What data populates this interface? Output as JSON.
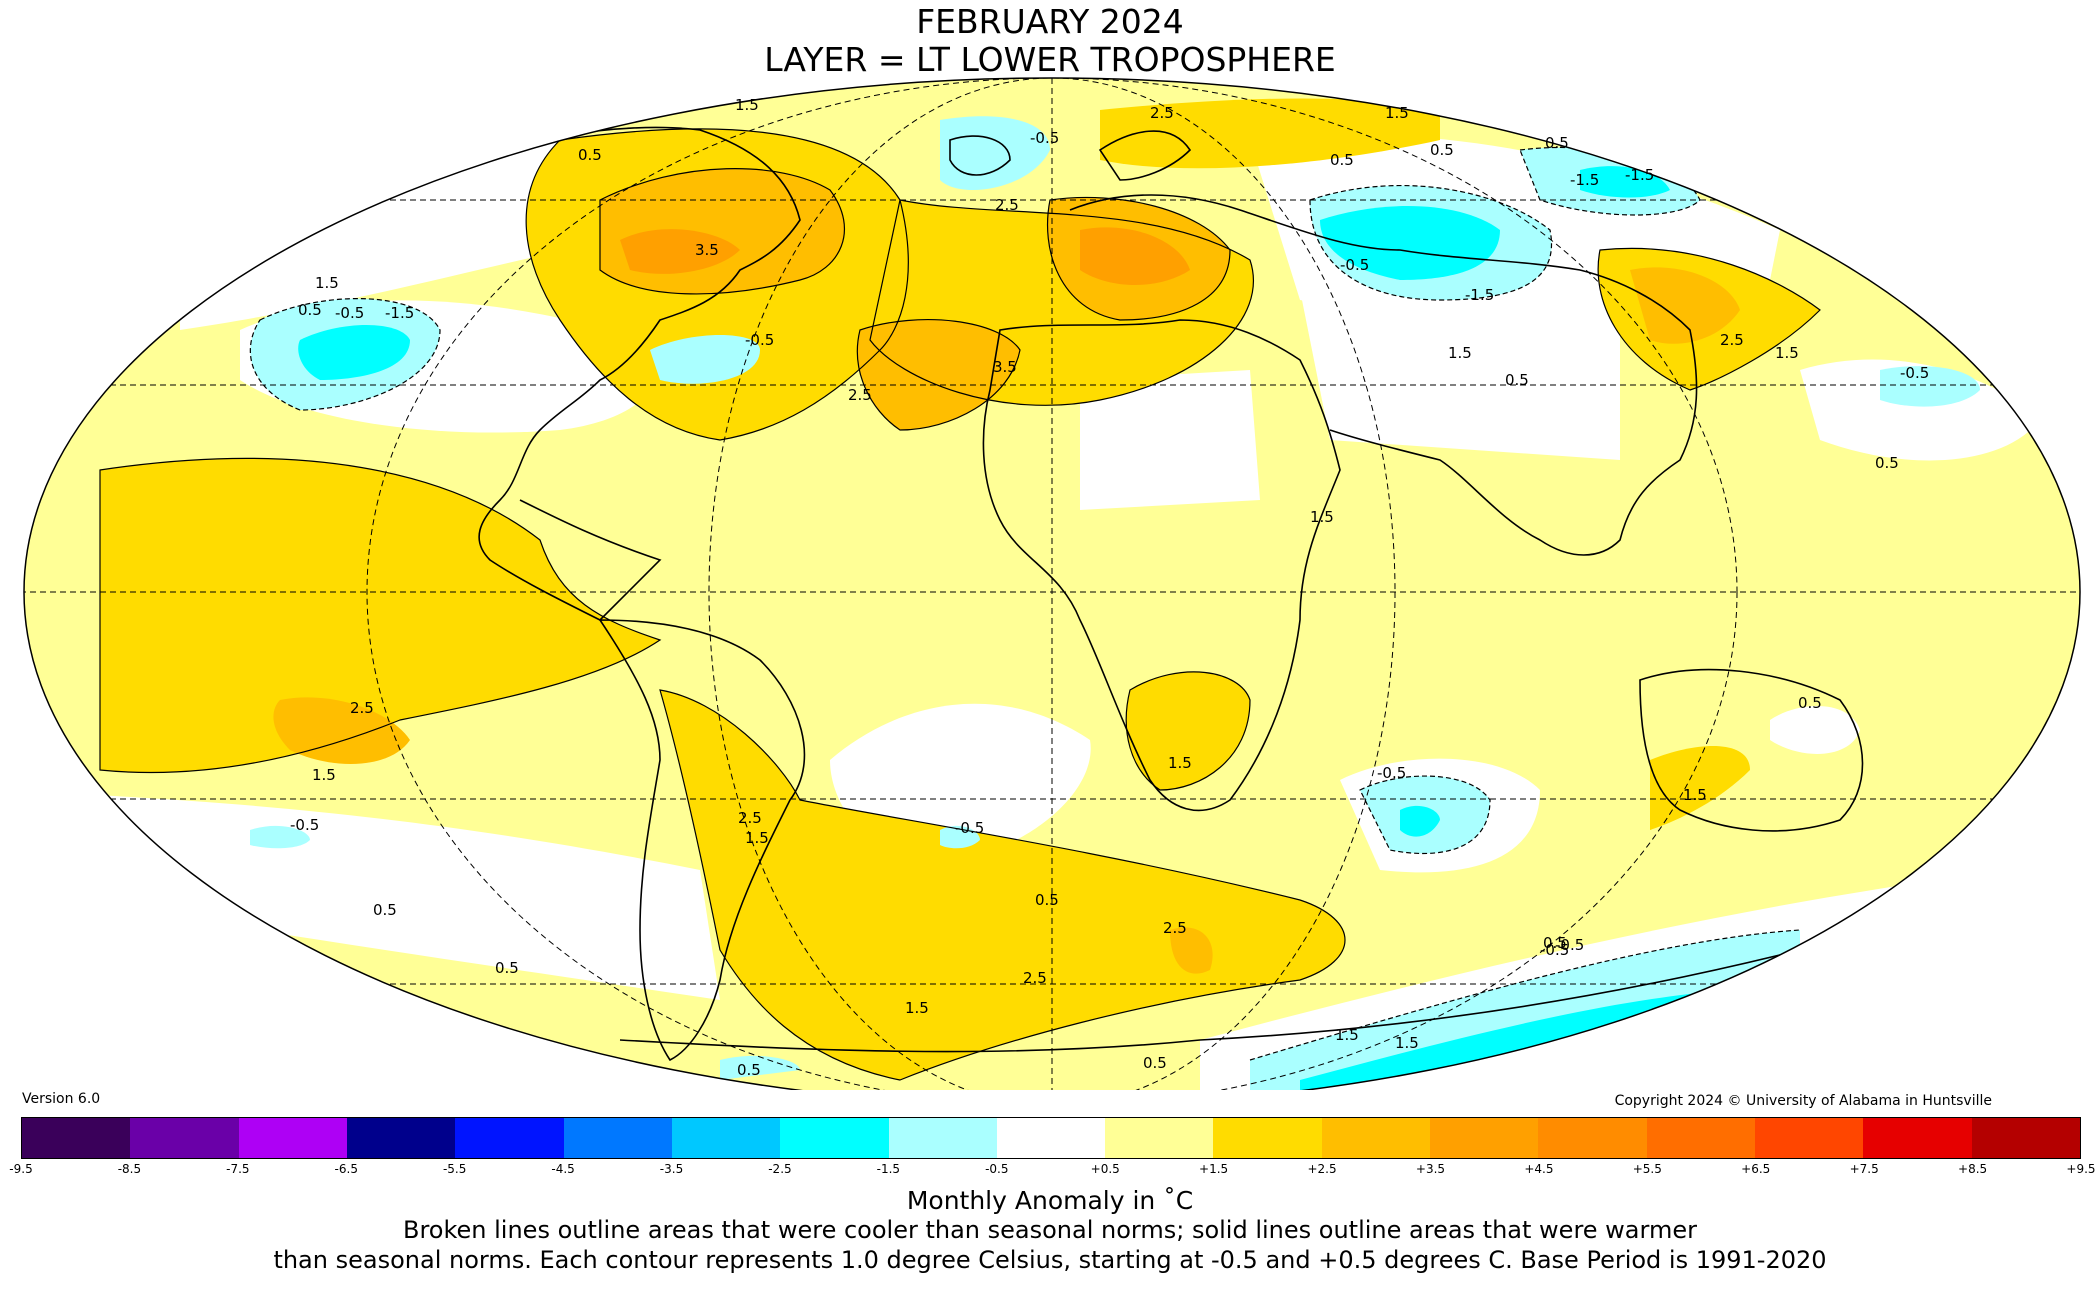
{
  "title_line1": "FEBRUARY 2024",
  "title_line2": "LAYER = LT LOWER TROPOSPHERE",
  "version": "Version 6.0",
  "copyright": "Copyright 2024 © University of Alabama in Huntsville",
  "colorbar": {
    "title": "Monthly Anomaly in ˚C",
    "colors": [
      "#3a005a",
      "#6a00a8",
      "#ae00f5",
      "#00008c",
      "#0014ff",
      "#0078ff",
      "#00c8ff",
      "#00ffff",
      "#aaffff",
      "#ffffff",
      "#ffff96",
      "#ffdc00",
      "#ffbe00",
      "#ffa000",
      "#ff8c00",
      "#ff6e00",
      "#ff4600",
      "#e60000",
      "#b40000"
    ],
    "ticks": [
      "-9.5",
      "-8.5",
      "-7.5",
      "-6.5",
      "-5.5",
      "-4.5",
      "-3.5",
      "-2.5",
      "-1.5",
      "-0.5",
      "+0.5",
      "+1.5",
      "+2.5",
      "+3.5",
      "+4.5",
      "+5.5",
      "+6.5",
      "+7.5",
      "+8.5",
      "+9.5"
    ]
  },
  "note_line1": "Broken lines outline areas that were cooler than seasonal norms; solid lines outline areas that were warmer",
  "note_line2": "than seasonal norms. Each contour represents 1.0 degree Celsius, starting at -0.5 and +0.5 degrees C. Base Period is 1991-2020",
  "map": {
    "projection": "Mollweide",
    "contour_labels": [
      "1.5",
      "0.5",
      "2.5",
      "3.5",
      "-0.5",
      "-1.5",
      "-0.5",
      "1.5",
      "2.5",
      "0.5",
      "3.5",
      "2.5",
      "1.5",
      "0.5",
      "-0.5",
      "0.5",
      "0.5",
      "-1.5",
      "1.5",
      "-0.5",
      "1.5",
      "1.5",
      "1.5",
      "2.5",
      "0.5",
      "0.5",
      "-0.5",
      "1.5",
      "-1.5",
      "-0.5",
      "-1.5",
      "-0.5",
      "1.5",
      "0.5",
      "2.5",
      "1.5",
      "0.5",
      "2.5",
      "1.5",
      "-0.5",
      "-0.5",
      "0.5",
      "0.5",
      "2.5",
      "2.5",
      "1.5",
      "1.5",
      "0.5",
      "-0.5",
      "0.5",
      "0.5"
    ]
  }
}
